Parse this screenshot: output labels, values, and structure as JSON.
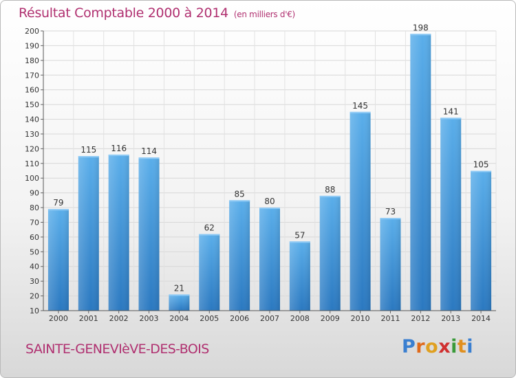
{
  "header": {
    "title": "Résultat Comptable 2000 à 2014",
    "subtitle": "(en milliers d'€)"
  },
  "footer": {
    "city": "SAINTE-GENEVIèVE-DES-BOIS",
    "logo": {
      "letters": [
        "P",
        "r",
        "o",
        "x",
        "i",
        "t",
        "i"
      ],
      "colors": [
        "#3a7fd0",
        "#e06a1a",
        "#e0a020",
        "#d03030",
        "#3a9a3a",
        "#e09020",
        "#3a7fd0"
      ]
    }
  },
  "colors": {
    "bar": "#4a9fe0",
    "bar_dark": "#2a78c0",
    "title": "#b03070"
  },
  "chart_data": {
    "type": "bar",
    "title": "Résultat Comptable 2000 à 2014",
    "subtitle": "(en milliers d'€)",
    "categories": [
      "2000",
      "2001",
      "2002",
      "2003",
      "2004",
      "2005",
      "2006",
      "2007",
      "2008",
      "2009",
      "2010",
      "2011",
      "2012",
      "2013",
      "2014"
    ],
    "values": [
      79,
      115,
      116,
      114,
      21,
      62,
      85,
      80,
      57,
      88,
      145,
      73,
      198,
      141,
      105
    ],
    "ylim": [
      10,
      200
    ],
    "yticks": [
      10,
      20,
      30,
      40,
      50,
      60,
      70,
      80,
      90,
      100,
      110,
      120,
      130,
      140,
      150,
      160,
      170,
      180,
      190,
      200
    ],
    "grid": true,
    "data_labels": true
  }
}
